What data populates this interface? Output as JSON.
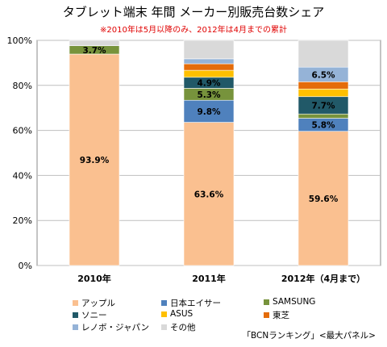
{
  "title": "タブレット端末 年間 メーカー別販売台数シェア",
  "subtitle": "※2010年は5月以降のみ、2012年は4月までの累計",
  "source": "「BCNランキング」<最大パネル>",
  "chart_data": {
    "type": "bar",
    "stacked": true,
    "categories": [
      "2010年",
      "2011年",
      "2012年（4月まで）"
    ],
    "ylim": [
      0,
      100
    ],
    "yticks": [
      "0%",
      "20%",
      "40%",
      "60%",
      "80%",
      "100%"
    ],
    "grid": true,
    "legend_position": "bottom",
    "series": [
      {
        "name": "アップル",
        "color": "#fac090",
        "values": [
          93.9,
          63.6,
          59.6
        ],
        "labels": [
          "93.9%",
          "63.6%",
          "59.6%"
        ]
      },
      {
        "name": "日本エイサー",
        "color": "#4f81bd",
        "values": [
          0,
          9.8,
          5.8
        ],
        "labels": [
          "",
          "9.8%",
          "5.8%"
        ]
      },
      {
        "name": "SAMSUNG",
        "color": "#77933c",
        "values": [
          3.7,
          5.3,
          1.9
        ],
        "labels": [
          "3.7%",
          "5.3%",
          ""
        ]
      },
      {
        "name": "ソニー",
        "color": "#215968",
        "values": [
          0,
          4.9,
          7.7
        ],
        "labels": [
          "",
          "4.9%",
          "7.7%"
        ]
      },
      {
        "name": "ASUS",
        "color": "#ffc000",
        "values": [
          0,
          3.1,
          3.4
        ],
        "labels": [
          "",
          "",
          ""
        ]
      },
      {
        "name": "東芝",
        "color": "#e46c0a",
        "values": [
          0,
          2.9,
          3.2
        ],
        "labels": [
          "",
          "",
          ""
        ]
      },
      {
        "name": "レノボ・ジャパン",
        "color": "#95b3d7",
        "values": [
          0,
          2.2,
          6.5
        ],
        "labels": [
          "",
          "",
          "6.5%"
        ]
      },
      {
        "name": "その他",
        "color": "#d9d9d9",
        "values": [
          2.4,
          8.2,
          11.9
        ],
        "labels": [
          "",
          "",
          ""
        ]
      }
    ]
  }
}
